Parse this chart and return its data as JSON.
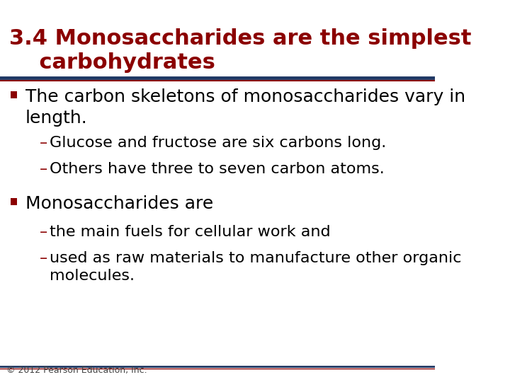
{
  "title_line1": "3.4 Monosaccharides are the simplest",
  "title_line2": "    carbohydrates",
  "title_color": "#8B0000",
  "title_fontsize": 22,
  "title_bold": true,
  "separator_color_top": "#1F3864",
  "separator_color_bottom": "#8B0000",
  "background_color": "#FFFFFF",
  "bullet_color": "#8B0000",
  "text_color": "#000000",
  "bullet_fontsize": 18,
  "sub_fontsize": 16,
  "footer_text": "© 2012 Pearson Education, Inc.",
  "footer_fontsize": 9,
  "bullets": [
    {
      "text": "The carbon skeletons of monosaccharides vary in\nlength.",
      "subs": [
        "Glucose and fructose are six carbons long.",
        "Others have three to seven carbon atoms."
      ]
    },
    {
      "text": "Monosaccharides are",
      "subs": [
        "the main fuels for cellular work and",
        "used as raw materials to manufacture other organic\nmolecules."
      ]
    }
  ]
}
